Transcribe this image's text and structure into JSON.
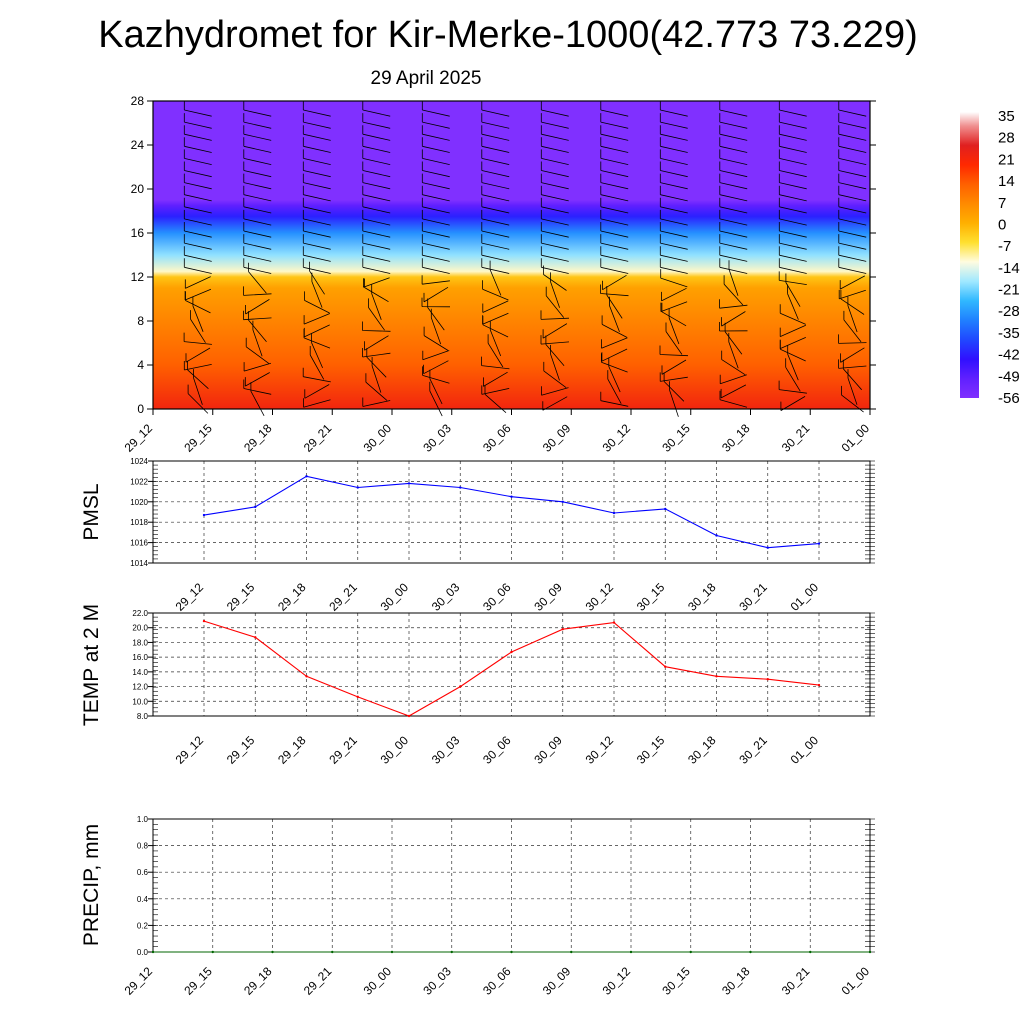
{
  "header": {
    "title": "Kazhydromet for Kir-Merke-1000(42.773 73.229)",
    "date": "29 April 2025"
  },
  "colors": {
    "pmsl_line": "#0000ff",
    "temp_line": "#ff0000",
    "precip_line": "#006400",
    "colorbar_top": "#f2a0a0",
    "colorbar_bottom": "#7b2fff"
  },
  "chart_data": [
    {
      "type": "heatmap",
      "title": "",
      "xlabel": "",
      "ylabel": "",
      "x": [
        "29_12",
        "29_15",
        "29_18",
        "29_21",
        "30_00",
        "30_03",
        "30_06",
        "30_09",
        "30_12",
        "30_15",
        "30_18",
        "30_21",
        "01_00"
      ],
      "ylim": [
        0,
        28
      ],
      "yticks": [
        0,
        4,
        8,
        12,
        16,
        20,
        24,
        28
      ],
      "colorbar_labels": [
        "35",
        "28",
        "21",
        "14",
        "7",
        "0",
        "-7",
        "-14",
        "-21",
        "-28",
        "-35",
        "-42",
        "-49",
        "-56"
      ],
      "colorscale_stops": [
        {
          "value": 40,
          "color": "#ffffff"
        },
        {
          "value": 35,
          "color": "#f09090"
        },
        {
          "value": 28,
          "color": "#e02020"
        },
        {
          "value": 21,
          "color": "#ff2800"
        },
        {
          "value": 14,
          "color": "#ff6000"
        },
        {
          "value": 7,
          "color": "#ff8a00"
        },
        {
          "value": 0,
          "color": "#ffb000"
        },
        {
          "value": -7,
          "color": "#ffe030"
        },
        {
          "value": -14,
          "color": "#fffce0"
        },
        {
          "value": -21,
          "color": "#a0e8ff"
        },
        {
          "value": -28,
          "color": "#30b8ff"
        },
        {
          "value": -35,
          "color": "#2080ff"
        },
        {
          "value": -42,
          "color": "#2048ff"
        },
        {
          "value": -49,
          "color": "#3010ff"
        },
        {
          "value": -56,
          "color": "#6020ff"
        },
        {
          "value": -63,
          "color": "#8030ff"
        }
      ],
      "profile": [
        {
          "height": 0,
          "value": 24
        },
        {
          "height": 4,
          "value": 14
        },
        {
          "height": 8,
          "value": 8
        },
        {
          "height": 11,
          "value": 3
        },
        {
          "height": 12,
          "value": -3
        },
        {
          "height": 12.5,
          "value": -13
        },
        {
          "height": 14,
          "value": -22
        },
        {
          "height": 16,
          "value": -33
        },
        {
          "height": 17.5,
          "value": -47
        },
        {
          "height": 18.5,
          "value": -56
        },
        {
          "height": 19,
          "value": -63
        },
        {
          "height": 28,
          "value": -64
        }
      ]
    },
    {
      "type": "line",
      "title": "",
      "xlabel": "",
      "ylabel": "PMSL",
      "x": [
        "29_12",
        "29_15",
        "29_18",
        "29_21",
        "30_00",
        "30_03",
        "30_06",
        "30_09",
        "30_12",
        "30_15",
        "30_18",
        "30_21",
        "01_00"
      ],
      "series": [
        {
          "values": [
            1018.7,
            1019.5,
            1022.5,
            1021.4,
            1021.8,
            1021.4,
            1020.5,
            1020.0,
            1018.9,
            1019.3,
            1016.7,
            1015.5,
            1015.9
          ]
        }
      ],
      "ylim": [
        1014,
        1024
      ],
      "yticks": [
        "1014",
        "1016",
        "1018",
        "1020",
        "1022",
        "1024"
      ],
      "grid": true
    },
    {
      "type": "line",
      "title": "",
      "xlabel": "",
      "ylabel": "TEMP at 2 M",
      "x": [
        "29_12",
        "29_15",
        "29_18",
        "29_21",
        "30_00",
        "30_03",
        "30_06",
        "30_09",
        "30_12",
        "30_15",
        "30_18",
        "30_21",
        "01_00"
      ],
      "series": [
        {
          "values": [
            20.9,
            18.7,
            13.4,
            10.6,
            8.0,
            12.0,
            16.7,
            19.8,
            20.7,
            14.7,
            13.4,
            13.0,
            12.2
          ]
        }
      ],
      "ylim": [
        8,
        22
      ],
      "yticks": [
        "8.0",
        "10.0",
        "12.0",
        "14.0",
        "16.0",
        "18.0",
        "20.0",
        "22.0"
      ],
      "grid": true
    },
    {
      "type": "line",
      "title": "",
      "xlabel": "",
      "ylabel": "PRECIP, mm",
      "x": [
        "29_12",
        "29_15",
        "29_18",
        "29_21",
        "30_00",
        "30_03",
        "30_06",
        "30_09",
        "30_12",
        "30_15",
        "30_18",
        "30_21",
        "01_00"
      ],
      "series": [
        {
          "values": [
            0,
            0,
            0,
            0,
            0,
            0,
            0,
            0,
            0,
            0,
            0,
            0,
            0
          ]
        }
      ],
      "ylim": [
        0,
        1
      ],
      "yticks": [
        "0.0",
        "0.2",
        "0.4",
        "0.6",
        "0.8",
        "1.0"
      ],
      "grid": true
    }
  ]
}
